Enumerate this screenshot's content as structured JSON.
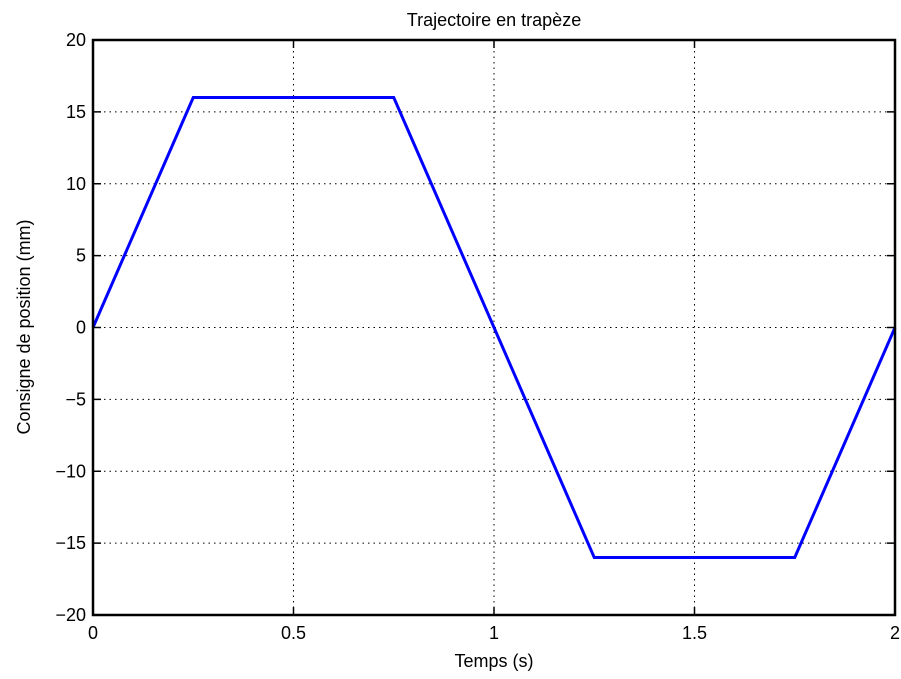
{
  "chart_data": {
    "type": "line",
    "title": "Trajectoire en trapèze",
    "xlabel": "Temps (s)",
    "ylabel": "Consigne de position (mm)",
    "xlim": [
      0,
      2
    ],
    "ylim": [
      -20,
      20
    ],
    "xticks": [
      0,
      0.5,
      1,
      1.5,
      2
    ],
    "xtick_labels": [
      "0",
      "0.5",
      "1",
      "1.5",
      "2"
    ],
    "yticks": [
      -20,
      -15,
      -10,
      -5,
      0,
      5,
      10,
      15,
      20
    ],
    "ytick_labels": [
      "−20",
      "−15",
      "−10",
      "−5",
      "0",
      "5",
      "10",
      "15",
      "20"
    ],
    "grid": true,
    "series": [
      {
        "color": "#0000ff",
        "x": [
          0,
          0.25,
          0.75,
          1.25,
          1.75,
          2
        ],
        "y": [
          0,
          16,
          16,
          -16,
          -16,
          0
        ]
      }
    ]
  }
}
